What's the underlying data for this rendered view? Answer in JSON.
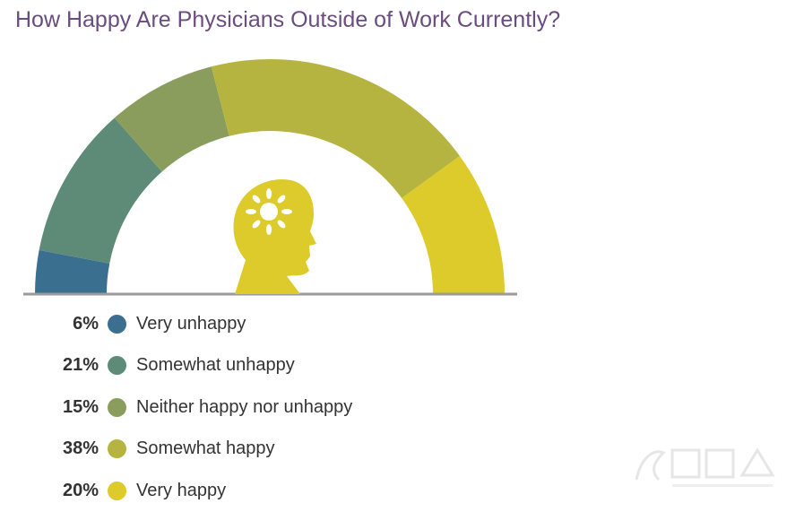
{
  "chart_data": {
    "type": "pie",
    "style": "semicircle-gauge",
    "title": "How Happy Are Physicians Outside of Work Currently?",
    "categories": [
      "Very unhappy",
      "Somewhat unhappy",
      "Neither happy nor unhappy",
      "Somewhat happy",
      "Very happy"
    ],
    "values": [
      6,
      21,
      15,
      38,
      20
    ],
    "value_labels": [
      "6%",
      "21%",
      "15%",
      "38%",
      "20%"
    ],
    "colors": [
      "#3b6f8f",
      "#5e8a78",
      "#8a9d5d",
      "#b5b441",
      "#dccb2a"
    ],
    "legend_position": "bottom-left",
    "center_icon": "head-with-sun-icon"
  }
}
